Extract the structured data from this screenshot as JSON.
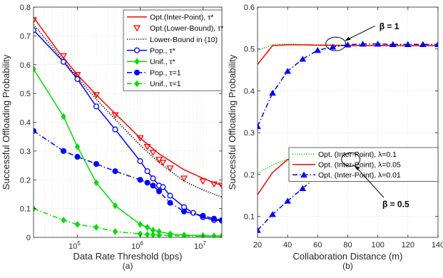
{
  "chart_data": [
    {
      "type": "line",
      "panel": "(a)",
      "xlabel": "Data Rate Threshold (bps)",
      "ylabel": "Successful Offloading Probability",
      "x_scale": "log",
      "xlim": [
        20000,
        20000000
      ],
      "ylim": [
        0,
        0.8
      ],
      "x_tick_values": [
        100000,
        1000000,
        10000000
      ],
      "x_tick_labels": [
        "10^5",
        "10^6",
        "10^7"
      ],
      "y_ticks": [
        "0",
        "0.1",
        "0.2",
        "0.3",
        "0.4",
        "0.5",
        "0.6",
        "0.7",
        "0.8"
      ],
      "grid": true,
      "legend_position": "top-right",
      "legend": [
        {
          "text": "Opt.(Inter-Point), τ*",
          "series": 0
        },
        {
          "text": "Opt.(Lower-Bound), τ*",
          "series": 1
        },
        {
          "text": "Lower-Bound in (10)",
          "series": 2
        },
        {
          "text": "Pop., τ*",
          "series": 3
        },
        {
          "text": "Unif., τ*",
          "series": 4
        },
        {
          "text": "Pop., τ=1",
          "series": 5
        },
        {
          "text": "Unif., τ=1",
          "series": 6
        }
      ],
      "series": [
        {
          "color": "#ff0000",
          "line": "solid",
          "marker": "none",
          "x": [
            20000,
            50000,
            100000,
            200000,
            400000,
            1000000,
            2000000,
            5000000,
            10000000,
            20000000
          ],
          "y": [
            0.765,
            0.645,
            0.565,
            0.495,
            0.43,
            0.345,
            0.29,
            0.235,
            0.205,
            0.18
          ]
        },
        {
          "color": "#ff0000",
          "line": "none",
          "marker": "triangle-down-open",
          "x": [
            20000,
            60000,
            100000,
            200000,
            400000,
            1000000,
            1300000,
            1600000,
            2000000,
            2300000,
            3000000,
            5000000,
            10000000,
            15000000,
            20000000
          ],
          "y": [
            0.755,
            0.63,
            0.565,
            0.495,
            0.425,
            0.345,
            0.315,
            0.295,
            0.27,
            0.26,
            0.24,
            0.205,
            0.195,
            0.185,
            0.18
          ]
        },
        {
          "color": "#000000",
          "line": "dotted",
          "marker": "none",
          "x": [
            20000,
            50000,
            100000,
            200000,
            400000,
            1000000,
            2000000,
            5000000,
            10000000,
            20000000
          ],
          "y": [
            0.74,
            0.635,
            0.555,
            0.48,
            0.41,
            0.32,
            0.26,
            0.195,
            0.165,
            0.14
          ]
        },
        {
          "color": "#0000ff",
          "line": "solid",
          "marker": "circle-open",
          "x": [
            20000,
            60000,
            100000,
            200000,
            400000,
            1000000,
            1300000,
            1600000,
            2000000,
            2300000,
            3000000,
            5000000,
            7000000,
            10000000,
            15000000,
            20000000
          ],
          "y": [
            0.72,
            0.61,
            0.55,
            0.455,
            0.375,
            0.265,
            0.23,
            0.205,
            0.18,
            0.175,
            0.145,
            0.105,
            0.085,
            0.07,
            0.06,
            0.058
          ]
        },
        {
          "color": "#00dd00",
          "line": "solid",
          "marker": "diamond-filled",
          "x": [
            20000,
            60000,
            100000,
            200000,
            400000,
            1000000,
            1300000,
            1600000,
            2000000,
            3000000,
            5000000,
            10000000,
            15000000,
            20000000
          ],
          "y": [
            0.585,
            0.42,
            0.315,
            0.19,
            0.11,
            0.045,
            0.035,
            0.025,
            0.02,
            0.012,
            0.008,
            0.006,
            0.005,
            0.005
          ]
        },
        {
          "color": "#0000ff",
          "line": "dashdot",
          "marker": "circle-filled",
          "x": [
            20000,
            60000,
            100000,
            200000,
            400000,
            1000000,
            1300000,
            1600000,
            2000000,
            3000000,
            5000000,
            10000000,
            15000000,
            20000000
          ],
          "y": [
            0.37,
            0.3,
            0.28,
            0.255,
            0.23,
            0.2,
            0.19,
            0.18,
            0.16,
            0.12,
            0.09,
            0.075,
            0.065,
            0.06
          ]
        },
        {
          "color": "#00dd00",
          "line": "dashdot",
          "marker": "diamond-filled",
          "x": [
            20000,
            60000,
            100000,
            200000,
            400000,
            1000000,
            1300000,
            1600000,
            2000000,
            3000000,
            5000000,
            10000000,
            15000000,
            20000000
          ],
          "y": [
            0.1,
            0.06,
            0.045,
            0.035,
            0.02,
            0.012,
            0.01,
            0.009,
            0.008,
            0.006,
            0.005,
            0.004,
            0.004,
            0.004
          ]
        }
      ]
    },
    {
      "type": "line",
      "panel": "(b)",
      "xlabel": "Collaboration Distance (m)",
      "ylabel": "Successful Offloading Probability",
      "xlim": [
        20,
        140
      ],
      "ylim": [
        0.05,
        0.6
      ],
      "x_ticks": [
        20,
        40,
        60,
        80,
        100,
        120,
        140
      ],
      "y_ticks": [
        "0.1",
        "0.2",
        "0.3",
        "0.4",
        "0.5",
        "0.6"
      ],
      "grid": true,
      "legend_position": "center-right",
      "legend": [
        {
          "text": "Opt. (Inter-Point), λ=0.1",
          "series": 0
        },
        {
          "text": "Opt. (Inter-Point), λ=0.05",
          "series": 1
        },
        {
          "text": "Opt. (Inter-Point), λ=0.01",
          "series": 2
        }
      ],
      "annotations": [
        {
          "text": "β = 1"
        },
        {
          "text": "β = 0.5"
        }
      ],
      "series": [
        {
          "color": "#00dd00",
          "line": "dotted",
          "marker": "none",
          "x": [
            20,
            30,
            40,
            50,
            60,
            70,
            80,
            90,
            100,
            110,
            120,
            130,
            140
          ],
          "y": [
            0.497,
            0.51,
            0.512,
            0.511,
            0.51,
            0.51,
            0.509,
            0.509,
            0.509,
            0.508,
            0.508,
            0.508,
            0.508
          ]
        },
        {
          "color": "#ff0000",
          "line": "solid",
          "marker": "none",
          "x": [
            20,
            30,
            40,
            50,
            60,
            70,
            80,
            90,
            100,
            110,
            120,
            130,
            140
          ],
          "y": [
            0.463,
            0.508,
            0.51,
            0.51,
            0.509,
            0.509,
            0.508,
            0.508,
            0.508,
            0.508,
            0.508,
            0.508,
            0.508
          ]
        },
        {
          "color": "#0000ff",
          "line": "dashdot",
          "marker": "triangle-up-filled",
          "x": [
            20,
            30,
            40,
            50,
            60,
            70,
            80,
            90,
            100,
            110,
            120,
            130,
            140
          ],
          "y": [
            0.315,
            0.395,
            0.447,
            0.476,
            0.497,
            0.505,
            0.51,
            0.512,
            0.512,
            0.511,
            0.511,
            0.511,
            0.511
          ]
        },
        {
          "color": "#00dd00",
          "line": "dotted",
          "marker": "none",
          "x": [
            20,
            30,
            40,
            50,
            60,
            70,
            80,
            90,
            100,
            110,
            120,
            130,
            140
          ],
          "y": [
            0.203,
            0.223,
            0.237,
            0.237,
            0.236,
            0.235,
            0.234,
            0.234,
            0.234,
            0.234,
            0.234,
            0.234,
            0.234
          ]
        },
        {
          "color": "#ff0000",
          "line": "solid",
          "marker": "none",
          "x": [
            20,
            30,
            40,
            50,
            60,
            70,
            80,
            90,
            100,
            110,
            120,
            130,
            140
          ],
          "y": [
            0.152,
            0.205,
            0.236,
            0.235,
            0.234,
            0.233,
            0.233,
            0.233,
            0.233,
            0.233,
            0.233,
            0.233,
            0.233
          ]
        },
        {
          "color": "#0000ff",
          "line": "dashdot",
          "marker": "triangle-up-filled",
          "x": [
            20,
            30,
            40,
            50,
            60,
            70,
            80,
            90,
            100,
            110,
            120,
            130,
            140
          ],
          "y": [
            0.067,
            0.105,
            0.137,
            0.167,
            0.197,
            0.215,
            0.23,
            0.236,
            0.24,
            0.238,
            0.237,
            0.236,
            0.236
          ]
        }
      ]
    }
  ]
}
